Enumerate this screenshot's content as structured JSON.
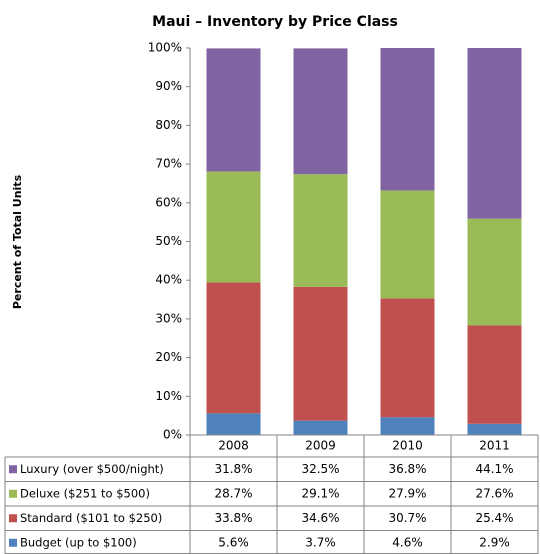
{
  "chart_data": {
    "type": "stacked-bar",
    "title": "Maui – Inventory by Price Class",
    "ylabel": "Percent of Total Units",
    "categories": [
      "2008",
      "2009",
      "2010",
      "2011"
    ],
    "series": [
      {
        "name": "Luxury (over $500/night)",
        "color": "#8064a2",
        "values": [
          31.8,
          32.5,
          36.8,
          44.1
        ],
        "value_labels": [
          "31.8%",
          "32.5%",
          "36.8%",
          "44.1%"
        ]
      },
      {
        "name": "Deluxe ($251 to $500)",
        "color": "#9bbb59",
        "values": [
          28.7,
          29.1,
          27.9,
          27.6
        ],
        "value_labels": [
          "28.7%",
          "29.1%",
          "27.9%",
          "27.6%"
        ]
      },
      {
        "name": "Standard ($101 to $250)",
        "color": "#c0504d",
        "values": [
          33.8,
          34.6,
          30.7,
          25.4
        ],
        "value_labels": [
          "33.8%",
          "34.6%",
          "30.7%",
          "25.4%"
        ]
      },
      {
        "name": "Budget (up to $100)",
        "color": "#4f81bd",
        "values": [
          5.6,
          3.7,
          4.6,
          2.9
        ],
        "value_labels": [
          "5.6%",
          "3.7%",
          "4.6%",
          "2.9%"
        ]
      }
    ],
    "ylim": [
      0,
      100
    ],
    "yticks": [
      {
        "value": 0,
        "label": "0%"
      },
      {
        "value": 10,
        "label": "10%"
      },
      {
        "value": 20,
        "label": "20%"
      },
      {
        "value": 30,
        "label": "30%"
      },
      {
        "value": 40,
        "label": "40%"
      },
      {
        "value": 50,
        "label": "50%"
      },
      {
        "value": 60,
        "label": "60%"
      },
      {
        "value": 70,
        "label": "70%"
      },
      {
        "value": 80,
        "label": "80%"
      },
      {
        "value": 90,
        "label": "90%"
      },
      {
        "value": 100,
        "label": "100%"
      }
    ]
  }
}
